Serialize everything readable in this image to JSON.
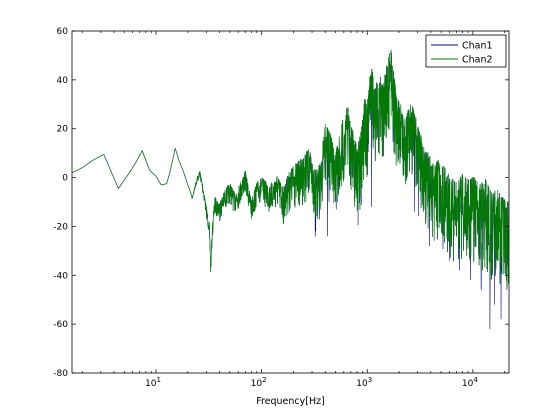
{
  "chart_data": {
    "type": "line",
    "xlabel": "Frequency[Hz]",
    "ylabel": "",
    "title": "",
    "xscale": "log",
    "xlim": [
      1.6,
      22000
    ],
    "ylim": [
      -80,
      60
    ],
    "yticks": [
      60,
      40,
      20,
      0,
      -20,
      -40,
      -60,
      -80
    ],
    "ytick_labels": [
      "60",
      "40",
      "20",
      "0",
      "-20",
      "-40",
      "-60",
      "-80"
    ],
    "xticks": [
      {
        "value": 10,
        "base": "10",
        "exp": "1"
      },
      {
        "value": 100,
        "base": "10",
        "exp": "2"
      },
      {
        "value": 1000,
        "base": "10",
        "exp": "3"
      },
      {
        "value": 10000,
        "base": "10",
        "exp": "4"
      }
    ],
    "grid": false,
    "legend_position": "top-right",
    "series": [
      {
        "name": "Chan1",
        "color": "#00008b"
      },
      {
        "name": "Chan2",
        "color": "#007a00"
      }
    ],
    "envelope_points": [
      [
        1.6,
        2
      ],
      [
        2,
        4
      ],
      [
        2.5,
        7
      ],
      [
        3.2,
        9.5
      ],
      [
        4.4,
        -4.5
      ],
      [
        5.6,
        2
      ],
      [
        6.5,
        6.5
      ],
      [
        7.4,
        11
      ],
      [
        8.7,
        3
      ],
      [
        10,
        0.5
      ],
      [
        11.2,
        -3
      ],
      [
        12.6,
        -2.5
      ],
      [
        13.5,
        2
      ],
      [
        15.2,
        12
      ],
      [
        16.5,
        7
      ],
      [
        18,
        3
      ],
      [
        20,
        -3
      ],
      [
        22,
        -8
      ],
      [
        24,
        -1
      ],
      [
        26,
        3
      ],
      [
        28,
        -4
      ],
      [
        30,
        -12
      ],
      [
        32,
        -19
      ],
      [
        33,
        -35.5
      ],
      [
        34,
        -20
      ],
      [
        36,
        -8
      ],
      [
        40,
        -10
      ],
      [
        45,
        -5
      ],
      [
        50,
        -2
      ],
      [
        55,
        -6
      ],
      [
        60,
        -4
      ],
      [
        70,
        3
      ],
      [
        80,
        -9
      ],
      [
        90,
        -2
      ],
      [
        100,
        0
      ],
      [
        120,
        -3
      ],
      [
        140,
        1
      ],
      [
        160,
        -4
      ],
      [
        180,
        2
      ],
      [
        200,
        5
      ],
      [
        240,
        8
      ],
      [
        280,
        12
      ],
      [
        320,
        3
      ],
      [
        360,
        6
      ],
      [
        400,
        22
      ],
      [
        450,
        18
      ],
      [
        500,
        10
      ],
      [
        550,
        18
      ],
      [
        600,
        26
      ],
      [
        650,
        30
      ],
      [
        700,
        24
      ],
      [
        760,
        16
      ],
      [
        820,
        14
      ],
      [
        880,
        20
      ],
      [
        950,
        34
      ],
      [
        1000,
        30
      ],
      [
        1050,
        42
      ],
      [
        1100,
        45
      ],
      [
        1200,
        38
      ],
      [
        1300,
        42
      ],
      [
        1400,
        40
      ],
      [
        1500,
        46
      ],
      [
        1600,
        50
      ],
      [
        1650,
        56
      ],
      [
        1750,
        45
      ],
      [
        1900,
        34
      ],
      [
        2100,
        30
      ],
      [
        2300,
        24
      ],
      [
        2600,
        32
      ],
      [
        3000,
        22
      ],
      [
        3400,
        14
      ],
      [
        3800,
        10
      ],
      [
        4300,
        5
      ],
      [
        4800,
        8
      ],
      [
        5500,
        4
      ],
      [
        6200,
        0
      ],
      [
        7000,
        -2
      ],
      [
        8000,
        2
      ],
      [
        9000,
        -1
      ],
      [
        10000,
        1
      ],
      [
        11500,
        -3
      ],
      [
        13000,
        0
      ],
      [
        15000,
        -6
      ],
      [
        17000,
        -4
      ],
      [
        19000,
        -8
      ],
      [
        22000,
        -10
      ]
    ],
    "envelope_depth_points": [
      [
        1.6,
        0
      ],
      [
        20,
        0
      ],
      [
        40,
        8
      ],
      [
        100,
        10
      ],
      [
        200,
        18
      ],
      [
        400,
        24
      ],
      [
        800,
        30
      ],
      [
        1500,
        34
      ],
      [
        2500,
        30
      ],
      [
        4000,
        32
      ],
      [
        7000,
        34
      ],
      [
        10000,
        36
      ],
      [
        15000,
        38
      ],
      [
        22000,
        40
      ]
    ],
    "chan1_dips": [
      [
        420,
        -24
      ],
      [
        1100,
        -12
      ],
      [
        2800,
        -14
      ],
      [
        3900,
        -28
      ],
      [
        6000,
        -34
      ],
      [
        7500,
        -38
      ],
      [
        9500,
        -42
      ],
      [
        12000,
        -46
      ],
      [
        14500,
        -62
      ],
      [
        16000,
        -52
      ],
      [
        18500,
        -58
      ],
      [
        21000,
        -46
      ]
    ]
  }
}
